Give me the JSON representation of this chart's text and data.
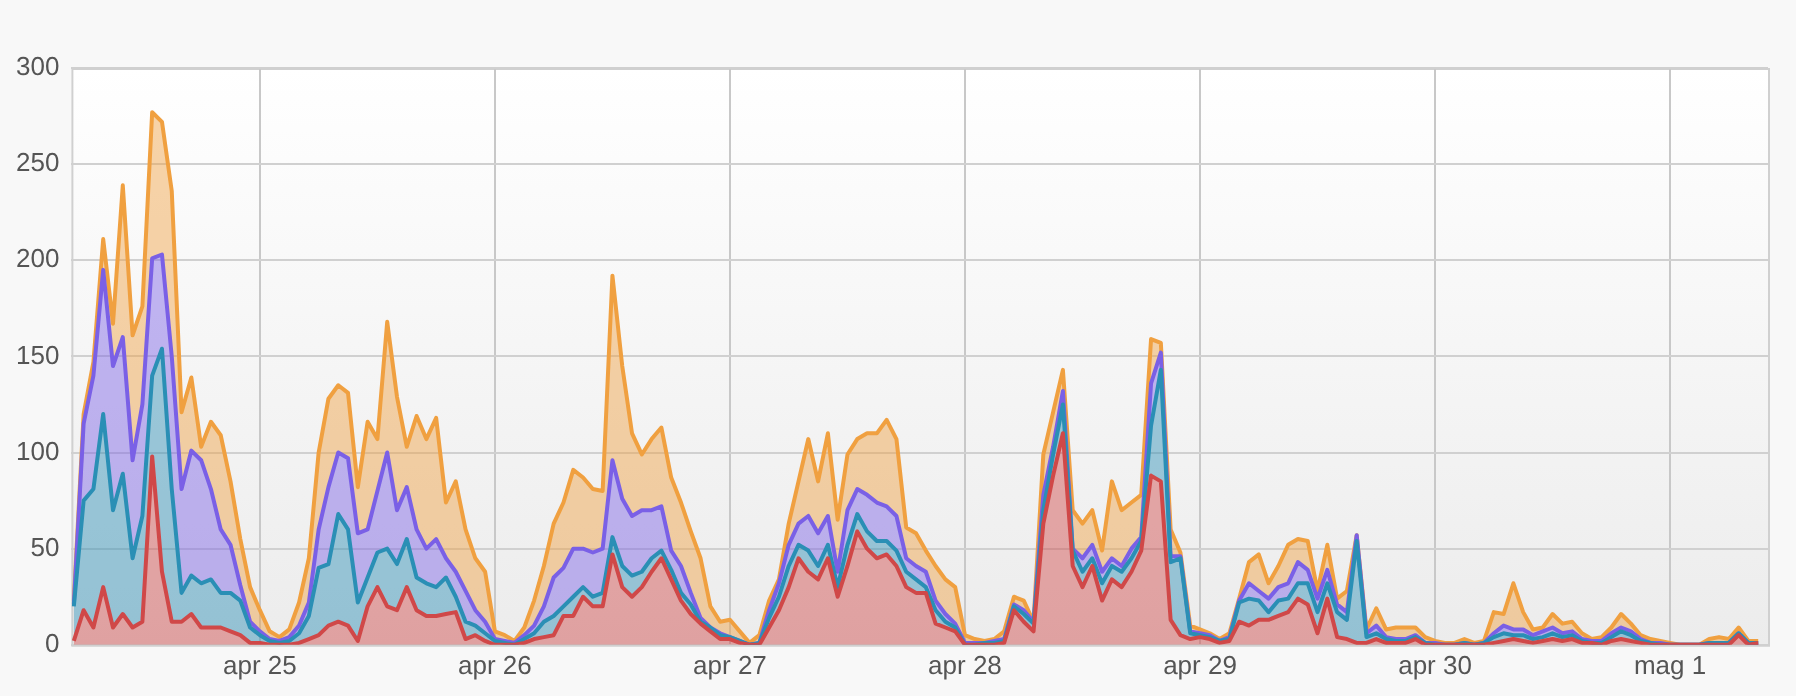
{
  "chart_data": {
    "type": "area",
    "stacked": true,
    "grid": true,
    "legend": false,
    "xlim": [
      "--04-24T04:45",
      "--05-01T10:00"
    ],
    "xticks": [
      {
        "value": "--04-25",
        "label": "apr 25"
      },
      {
        "value": "--04-26",
        "label": "apr 26"
      },
      {
        "value": "--04-27",
        "label": "apr 27"
      },
      {
        "value": "--04-28",
        "label": "apr 28"
      },
      {
        "value": "--04-29",
        "label": "apr 29"
      },
      {
        "value": "--04-30",
        "label": "apr 30"
      },
      {
        "value": "--05-01",
        "label": "mag 1"
      }
    ],
    "ylim": [
      0,
      300
    ],
    "yticks": [
      0,
      50,
      100,
      150,
      200,
      250,
      300
    ],
    "x": [
      "--04-24T05:00",
      "--04-24T06:00",
      "--04-24T07:00",
      "--04-24T08:00",
      "--04-24T09:00",
      "--04-24T10:00",
      "--04-24T11:00",
      "--04-24T12:00",
      "--04-24T13:00",
      "--04-24T14:00",
      "--04-24T15:00",
      "--04-24T16:00",
      "--04-24T17:00",
      "--04-24T18:00",
      "--04-24T19:00",
      "--04-24T20:00",
      "--04-24T21:00",
      "--04-24T22:00",
      "--04-24T23:00",
      "--04-25T00:00",
      "--04-25T01:00",
      "--04-25T02:00",
      "--04-25T03:00",
      "--04-25T04:00",
      "--04-25T05:00",
      "--04-25T06:00",
      "--04-25T07:00",
      "--04-25T08:00",
      "--04-25T09:00",
      "--04-25T10:00",
      "--04-25T11:00",
      "--04-25T12:00",
      "--04-25T13:00",
      "--04-25T14:00",
      "--04-25T15:00",
      "--04-25T16:00",
      "--04-25T17:00",
      "--04-25T18:00",
      "--04-25T19:00",
      "--04-25T20:00",
      "--04-25T21:00",
      "--04-25T22:00",
      "--04-25T23:00",
      "--04-26T00:00",
      "--04-26T01:00",
      "--04-26T02:00",
      "--04-26T03:00",
      "--04-26T04:00",
      "--04-26T05:00",
      "--04-26T06:00",
      "--04-26T07:00",
      "--04-26T08:00",
      "--04-26T09:00",
      "--04-26T10:00",
      "--04-26T11:00",
      "--04-26T12:00",
      "--04-26T13:00",
      "--04-26T14:00",
      "--04-26T15:00",
      "--04-26T16:00",
      "--04-26T17:00",
      "--04-26T18:00",
      "--04-26T19:00",
      "--04-26T20:00",
      "--04-26T21:00",
      "--04-26T22:00",
      "--04-26T23:00",
      "--04-27T00:00",
      "--04-27T01:00",
      "--04-27T02:00",
      "--04-27T03:00",
      "--04-27T04:00",
      "--04-27T05:00",
      "--04-27T06:00",
      "--04-27T07:00",
      "--04-27T08:00",
      "--04-27T09:00",
      "--04-27T10:00",
      "--04-27T11:00",
      "--04-27T12:00",
      "--04-27T13:00",
      "--04-27T14:00",
      "--04-27T15:00",
      "--04-27T16:00",
      "--04-27T17:00",
      "--04-27T18:00",
      "--04-27T19:00",
      "--04-27T20:00",
      "--04-27T21:00",
      "--04-27T22:00",
      "--04-27T23:00",
      "--04-28T00:00",
      "--04-28T01:00",
      "--04-28T02:00",
      "--04-28T03:00",
      "--04-28T04:00",
      "--04-28T05:00",
      "--04-28T06:00",
      "--04-28T07:00",
      "--04-28T08:00",
      "--04-28T09:00",
      "--04-28T10:00",
      "--04-28T11:00",
      "--04-28T12:00",
      "--04-28T13:00",
      "--04-28T14:00",
      "--04-28T15:00",
      "--04-28T16:00",
      "--04-28T17:00",
      "--04-28T18:00",
      "--04-28T19:00",
      "--04-28T20:00",
      "--04-28T21:00",
      "--04-28T22:00",
      "--04-28T23:00",
      "--04-29T00:00",
      "--04-29T01:00",
      "--04-29T02:00",
      "--04-29T03:00",
      "--04-29T04:00",
      "--04-29T05:00",
      "--04-29T06:00",
      "--04-29T07:00",
      "--04-29T08:00",
      "--04-29T09:00",
      "--04-29T10:00",
      "--04-29T11:00",
      "--04-29T12:00",
      "--04-29T13:00",
      "--04-29T14:00",
      "--04-29T15:00",
      "--04-29T16:00",
      "--04-29T17:00",
      "--04-29T18:00",
      "--04-29T19:00",
      "--04-29T20:00",
      "--04-29T21:00",
      "--04-29T22:00",
      "--04-29T23:00",
      "--04-30T00:00",
      "--04-30T01:00",
      "--04-30T02:00",
      "--04-30T03:00",
      "--04-30T04:00",
      "--04-30T05:00",
      "--04-30T06:00",
      "--04-30T07:00",
      "--04-30T08:00",
      "--04-30T09:00",
      "--04-30T10:00",
      "--04-30T11:00",
      "--04-30T12:00",
      "--04-30T13:00",
      "--04-30T14:00",
      "--04-30T15:00",
      "--04-30T16:00",
      "--04-30T17:00",
      "--04-30T18:00",
      "--04-30T19:00",
      "--04-30T20:00",
      "--04-30T21:00",
      "--04-30T22:00",
      "--04-30T23:00",
      "--05-01T00:00",
      "--05-01T01:00",
      "--05-01T02:00",
      "--05-01T03:00",
      "--05-01T04:00",
      "--05-01T05:00",
      "--05-01T06:00",
      "--05-01T07:00",
      "--05-01T08:00",
      "--05-01T09:00"
    ],
    "series": [
      {
        "color": "#d04848",
        "values": [
          2,
          18,
          9,
          30,
          9,
          16,
          9,
          12,
          98,
          38,
          12,
          12,
          16,
          9,
          9,
          9,
          7,
          5,
          1,
          1,
          0,
          0,
          0,
          1,
          3,
          5,
          10,
          12,
          10,
          2,
          20,
          30,
          20,
          18,
          30,
          18,
          15,
          15,
          16,
          17,
          3,
          5,
          2,
          0,
          0,
          0,
          1,
          3,
          4,
          5,
          15,
          15,
          25,
          20,
          20,
          47,
          30,
          25,
          30,
          38,
          45,
          34,
          23,
          16,
          11,
          7,
          3,
          3,
          1,
          0,
          0,
          9,
          18,
          30,
          45,
          38,
          34,
          45,
          25,
          41,
          59,
          50,
          45,
          47,
          41,
          30,
          27,
          27,
          11,
          9,
          7,
          0,
          0,
          0,
          0,
          1,
          18,
          12,
          7,
          63,
          88,
          110,
          41,
          30,
          41,
          23,
          34,
          30,
          38,
          49,
          88,
          85,
          13,
          5,
          3,
          4,
          3,
          1,
          2,
          12,
          10,
          13,
          13,
          15,
          17,
          24,
          21,
          6,
          24,
          4,
          3,
          1,
          1,
          3,
          1,
          1,
          1,
          3,
          0,
          0,
          0,
          0,
          0,
          0,
          0,
          1,
          2,
          3,
          2,
          1,
          2,
          3,
          2,
          3,
          1,
          1,
          0,
          2,
          3,
          2,
          1,
          0,
          0,
          0,
          0,
          0,
          0,
          0,
          0,
          0,
          5,
          0,
          1
        ]
      },
      {
        "color": "#2a8fb5",
        "values": [
          18,
          57,
          72,
          90,
          61,
          73,
          36,
          55,
          42,
          116,
          69,
          15,
          20,
          23,
          25,
          18,
          20,
          18,
          8,
          4,
          2,
          1,
          2,
          5,
          12,
          35,
          32,
          56,
          50,
          20,
          15,
          18,
          30,
          24,
          25,
          17,
          17,
          15,
          19,
          8,
          9,
          5,
          4,
          2,
          1,
          0,
          2,
          3,
          8,
          10,
          5,
          10,
          5,
          5,
          7,
          9,
          11,
          11,
          8,
          7,
          4,
          5,
          4,
          5,
          1,
          2,
          2,
          1,
          1,
          0,
          1,
          5,
          7,
          11,
          7,
          11,
          7,
          7,
          5,
          11,
          9,
          9,
          9,
          7,
          8,
          8,
          7,
          3,
          7,
          3,
          2,
          0,
          0,
          1,
          1,
          1,
          2,
          4,
          4,
          7,
          11,
          15,
          8,
          8,
          4,
          9,
          7,
          8,
          7,
          5,
          26,
          58,
          30,
          40,
          3,
          1,
          1,
          1,
          1,
          10,
          14,
          10,
          4,
          8,
          7,
          8,
          11,
          11,
          8,
          13,
          10,
          53,
          3,
          3,
          2,
          1,
          1,
          1,
          1,
          0,
          0,
          0,
          1,
          0,
          1,
          3,
          4,
          2,
          3,
          2,
          2,
          3,
          2,
          2,
          1,
          0,
          1,
          2,
          4,
          3,
          1,
          1,
          0,
          0,
          0,
          0,
          0,
          1,
          1,
          1,
          1,
          1,
          0
        ]
      },
      {
        "color": "#7a60e6",
        "values": [
          1,
          40,
          59,
          75,
          75,
          71,
          51,
          58,
          61,
          49,
          69,
          54,
          65,
          64,
          47,
          33,
          25,
          8,
          3,
          2,
          1,
          1,
          2,
          4,
          7,
          20,
          40,
          32,
          37,
          36,
          25,
          32,
          50,
          28,
          27,
          25,
          18,
          25,
          10,
          13,
          16,
          8,
          6,
          1,
          1,
          1,
          2,
          4,
          8,
          20,
          20,
          25,
          20,
          23,
          23,
          40,
          35,
          31,
          32,
          25,
          23,
          10,
          14,
          6,
          2,
          0,
          1,
          0,
          0,
          0,
          0,
          4,
          7,
          11,
          11,
          18,
          17,
          15,
          8,
          18,
          13,
          19,
          20,
          18,
          18,
          7,
          7,
          8,
          5,
          4,
          2,
          1,
          1,
          0,
          1,
          1,
          1,
          2,
          1,
          8,
          4,
          7,
          1,
          7,
          7,
          6,
          4,
          3,
          5,
          2,
          22,
          9,
          3,
          1,
          1,
          1,
          1,
          0,
          1,
          1,
          8,
          5,
          7,
          7,
          8,
          11,
          7,
          7,
          7,
          4,
          4,
          3,
          2,
          4,
          1,
          1,
          1,
          1,
          0,
          1,
          0,
          0,
          0,
          0,
          0,
          2,
          4,
          3,
          3,
          2,
          3,
          3,
          2,
          2,
          1,
          1,
          1,
          2,
          2,
          2,
          1,
          0,
          1,
          0,
          0,
          0,
          0,
          0,
          0,
          0,
          0,
          0,
          0
        ]
      },
      {
        "color": "#f0a040",
        "values": [
          2,
          5,
          7,
          16,
          22,
          79,
          65,
          51,
          76,
          69,
          86,
          40,
          38,
          7,
          35,
          49,
          33,
          24,
          18,
          11,
          4,
          2,
          4,
          12,
          23,
          40,
          46,
          35,
          34,
          24,
          56,
          27,
          68,
          59,
          21,
          59,
          57,
          63,
          29,
          47,
          32,
          27,
          26,
          4,
          3,
          1,
          4,
          13,
          21,
          28,
          34,
          41,
          37,
          33,
          30,
          96,
          69,
          43,
          29,
          37,
          41,
          38,
          33,
          32,
          31,
          11,
          6,
          9,
          5,
          1,
          4,
          5,
          2,
          11,
          22,
          40,
          27,
          43,
          27,
          29,
          26,
          32,
          36,
          45,
          40,
          16,
          17,
          11,
          18,
          18,
          19,
          4,
          2,
          1,
          1,
          4,
          4,
          5,
          0,
          21,
          18,
          11,
          20,
          18,
          18,
          11,
          40,
          29,
          24,
          22,
          23,
          5,
          14,
          2,
          3,
          2,
          1,
          1,
          2,
          1,
          11,
          19,
          8,
          11,
          20,
          12,
          15,
          4,
          13,
          3,
          11,
          0,
          2,
          9,
          4,
          6,
          6,
          4,
          3,
          1,
          1,
          1,
          2,
          1,
          1,
          11,
          6,
          24,
          9,
          3,
          2,
          7,
          5,
          5,
          3,
          1,
          2,
          3,
          7,
          4,
          2,
          2,
          1,
          1,
          0,
          0,
          0,
          2,
          3,
          2,
          3,
          1,
          1
        ]
      }
    ]
  }
}
